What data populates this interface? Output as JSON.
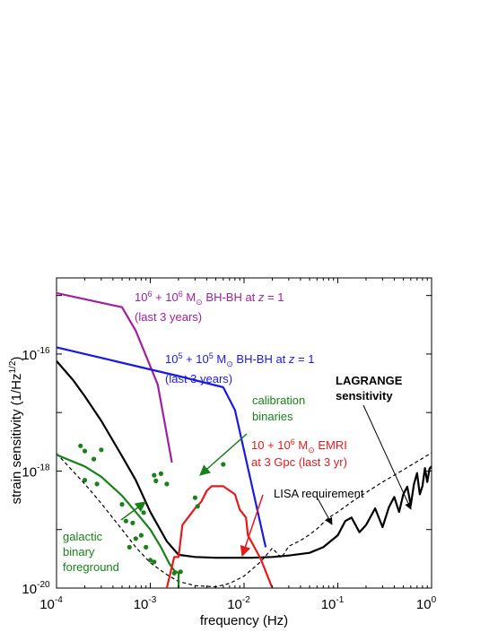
{
  "chart_data": {
    "type": "line",
    "title": "",
    "xlabel": "frequency (Hz)",
    "ylabel": "strain sensitivity (1/Hz",
    "ylabel_sup": "1/2",
    "ylabel_close": ")",
    "x_scale": "log",
    "y_scale": "log",
    "xlim": [
      0.0001,
      1
    ],
    "ylim": [
      1e-20,
      2e-15
    ],
    "grid": false,
    "x_ticks": [
      {
        "base": "10",
        "exp": "-4"
      },
      {
        "base": "10",
        "exp": "-3"
      },
      {
        "base": "10",
        "exp": "-2"
      },
      {
        "base": "10",
        "exp": "-1"
      },
      {
        "base": "10",
        "exp": "0"
      }
    ],
    "y_ticks": [
      {
        "base": "10",
        "exp": "-20"
      },
      {
        "base": "10",
        "exp": "-18"
      },
      {
        "base": "10",
        "exp": "-16"
      }
    ],
    "series": [
      {
        "key": "bhbh6",
        "color": "#a020a0",
        "style": "solid",
        "x": [
          0.0001,
          0.0005,
          0.0007,
          0.0012,
          0.0017
        ],
        "y": [
          1.1e-15,
          6.3e-16,
          2.5e-16,
          3e-17,
          1.4e-18
        ]
      },
      {
        "key": "bhbh5",
        "color": "#1a1ae6",
        "style": "solid",
        "x": [
          0.0001,
          0.002,
          0.006,
          0.008,
          0.017
        ],
        "y": [
          1.3e-16,
          4.2e-17,
          2.7e-17,
          1.1e-17,
          5e-20
        ]
      },
      {
        "key": "lagrange",
        "color": "#000000",
        "style": "solid",
        "x": [
          0.0001,
          0.00015,
          0.0002,
          0.0003,
          0.0005,
          0.0007,
          0.001,
          0.0015,
          0.002,
          0.003,
          0.005,
          0.008,
          0.012,
          0.02,
          0.03,
          0.05,
          0.07,
          0.1,
          0.12,
          0.14,
          0.17,
          0.2,
          0.25,
          0.3,
          0.35,
          0.4,
          0.45,
          0.5,
          0.55,
          0.6,
          0.65,
          0.7,
          0.75,
          0.8,
          0.85,
          0.9,
          0.95,
          1.0
        ],
        "y": [
          7.6e-17,
          3.6e-17,
          1.9e-17,
          7.2e-18,
          1.8e-18,
          7e-19,
          2e-19,
          6.3e-20,
          3.7e-20,
          3.4e-20,
          3.3e-20,
          3.3e-20,
          3.3e-20,
          3.4e-20,
          3.6e-20,
          4e-20,
          5e-20,
          8e-20,
          1.4e-19,
          1.6e-19,
          9e-20,
          1.2e-19,
          2.3e-19,
          1.1e-19,
          2.4e-19,
          3.6e-19,
          2e-19,
          4e-19,
          5.4e-19,
          2.6e-19,
          6e-19,
          9.2e-19,
          4e-19,
          5.6e-19,
          1.12e-18,
          6.5e-19,
          1.1e-18,
          1.2e-18
        ]
      },
      {
        "key": "lisa",
        "color": "#000000",
        "style": "dashed",
        "x": [
          0.0001,
          0.0002,
          0.0003,
          0.0005,
          0.0007,
          0.001,
          0.0015,
          0.002,
          0.003,
          0.005,
          0.007,
          0.01,
          0.015,
          0.02,
          0.025,
          0.03,
          0.04,
          0.05,
          0.06,
          0.07,
          0.08,
          0.1,
          0.15,
          0.2,
          0.3,
          0.4,
          0.5,
          0.6,
          0.7,
          0.8,
          0.9,
          1.0
        ],
        "y": [
          2e-18,
          6e-19,
          2.8e-19,
          1e-19,
          5e-20,
          2.7e-20,
          1.7e-20,
          1.3e-20,
          1.1e-20,
          1.05e-20,
          1.2e-20,
          1.6e-20,
          2.8e-20,
          4.8e-20,
          3.3e-20,
          5.2e-20,
          6.5e-20,
          8.2e-20,
          1.03e-19,
          1.3e-19,
          1.6e-19,
          2e-19,
          3.2e-19,
          4.3e-19,
          6.5e-19,
          8.5e-19,
          1.05e-18,
          1.25e-18,
          1.45e-18,
          1.65e-18,
          1.85e-18,
          2.05e-18
        ]
      },
      {
        "key": "galactic",
        "color": "#1a801a",
        "style": "solid",
        "x": [
          0.0001,
          0.0002,
          0.0003,
          0.0005,
          0.0007,
          0.001,
          0.0013,
          0.0016,
          0.0018,
          0.002,
          0.002
        ],
        "y": [
          1.9e-18,
          1.2e-18,
          8e-19,
          3.8e-19,
          2e-19,
          1e-19,
          5e-20,
          2.6e-20,
          2e-20,
          1.8e-20,
          1e-20
        ]
      },
      {
        "key": "emri",
        "color": "#e61a1a",
        "style": "solid",
        "x": [
          0.0015,
          0.0018,
          0.002,
          0.0022,
          0.003,
          0.0035,
          0.004,
          0.0045,
          0.006,
          0.008,
          0.009,
          0.0105,
          0.011,
          0.015,
          0.02
        ],
        "y": [
          1e-20,
          3.4e-20,
          3.4e-20,
          1.2e-19,
          2.3e-19,
          3e-19,
          4.6e-19,
          5.5e-19,
          5.5e-19,
          4e-19,
          2.2e-19,
          1.6e-19,
          8e-20,
          3.2e-20,
          1e-20
        ]
      },
      {
        "key": "calibration",
        "color": "#1a801a",
        "style": "dots",
        "x": [
          0.00018,
          0.0002,
          0.00025,
          0.0003,
          0.0002,
          0.00027,
          0.0005,
          0.00055,
          0.00065,
          0.0008,
          0.0007,
          0.0006,
          0.0009,
          0.001,
          0.0015,
          0.0013,
          0.0011,
          0.00115,
          0.0011,
          0.0018,
          0.0021,
          0.003,
          0.0032,
          0.006,
          0.00085
        ],
        "y": [
          2.7e-18,
          2.2e-18,
          1.6e-18,
          2.3e-18,
          7e-19,
          6e-19,
          2.7e-19,
          1.4e-19,
          1.3e-19,
          8e-20,
          7e-20,
          5e-20,
          5e-20,
          3e-20,
          6e-19,
          9e-19,
          8.5e-19,
          6.8e-19,
          2.8e-20,
          1.8e-20,
          1.9e-20,
          3.5e-19,
          2.5e-19,
          1.3e-18,
          1.95e-19
        ]
      }
    ],
    "annotations": {
      "bhbh6": {
        "line1_a": "10",
        "line1_sup1": "6",
        "line1_b": " + 10",
        "line1_sup2": "6",
        "line1_c": " M",
        "line1_sub": "⊙",
        "line1_d": " BH-BH at ",
        "line1_z": "z",
        "line1_e": " = 1",
        "line2": "(last 3 years)"
      },
      "bhbh5": {
        "line1_a": "10",
        "line1_sup1": "5",
        "line1_b": " + 10",
        "line1_sup2": "5",
        "line1_c": " M",
        "line1_sub": "⊙",
        "line1_d": " BH-BH at ",
        "line1_z": "z",
        "line1_e": " = 1",
        "line2": "(last 3 years)"
      },
      "lagrange": {
        "line1": "LAGRANGE",
        "line2": "sensitivity"
      },
      "calibration": {
        "line1": "calibration",
        "line2": "binaries"
      },
      "emri": {
        "line1_a": "10 + 10",
        "line1_sup": "6",
        "line1_b": " M",
        "line1_sub": "⊙",
        "line1_c": " EMRI",
        "line2": "at 3 Gpc (last 3 yr)"
      },
      "lisa": {
        "line1": "LISA requirement"
      },
      "galactic": {
        "line1": "galactic",
        "line2": "binary",
        "line3": "foreground"
      }
    }
  }
}
